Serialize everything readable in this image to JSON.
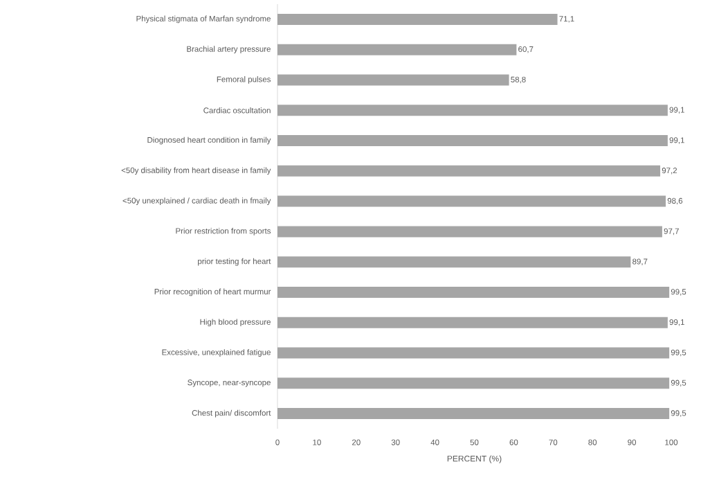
{
  "chart_data": {
    "type": "bar",
    "orientation": "horizontal",
    "xlabel": "PERCENT (%)",
    "categories": [
      "Physical stigmata of Marfan syndrome",
      "Brachial artery pressure",
      "Femoral pulses",
      "Cardiac oscultation",
      "Diognosed heart condition in family",
      "<50y disability from heart disease in family",
      "<50y unexplained / cardiac death in fmaily",
      "Prior restriction from sports",
      "prior testing for heart",
      "Prior recognition of heart murmur",
      "High blood pressure",
      "Excessive, unexplained fatigue",
      "Syncope, near-syncope",
      "Chest pain/ discomfort"
    ],
    "values": [
      71.1,
      60.7,
      58.8,
      99.1,
      99.1,
      97.2,
      98.6,
      97.7,
      89.7,
      99.5,
      99.1,
      99.5,
      99.5,
      99.5
    ],
    "value_labels": [
      "71,1",
      "60,7",
      "58,8",
      "99,1",
      "99,1",
      "97,2",
      "98,6",
      "97,7",
      "89,7",
      "99,5",
      "99,1",
      "99,5",
      "99,5",
      "99,5"
    ],
    "color": "#a5a5a5",
    "xlim": [
      0,
      100
    ],
    "xticks": [
      0,
      10,
      20,
      30,
      40,
      50,
      60,
      70,
      80,
      90,
      100
    ]
  }
}
